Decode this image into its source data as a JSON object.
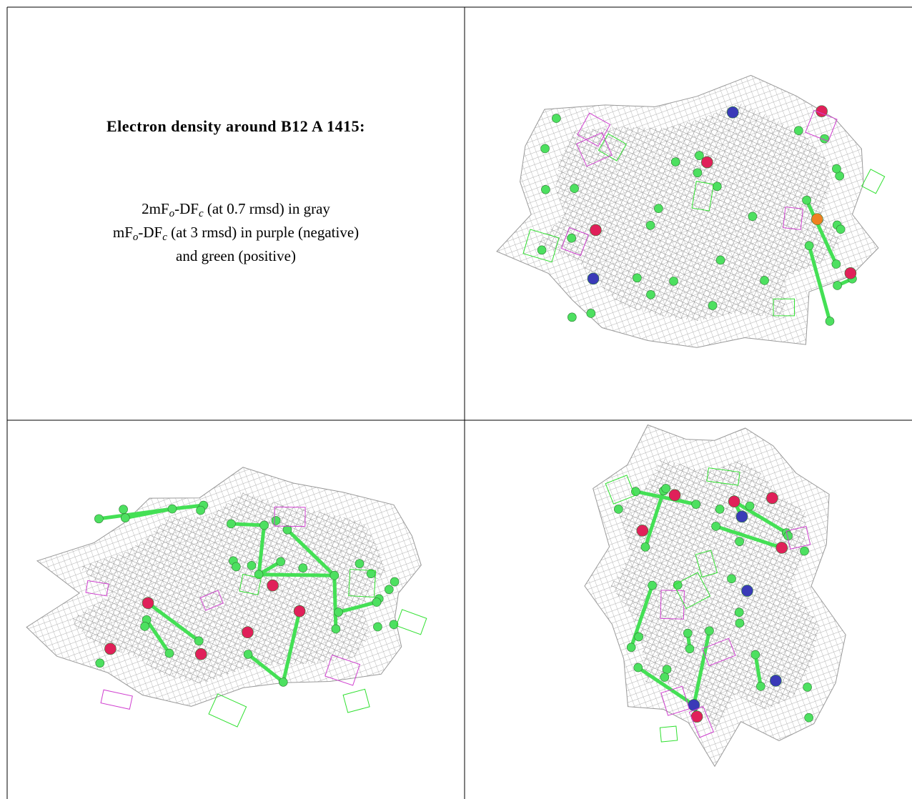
{
  "caption": {
    "title": "Electron density around B12 A 1415:",
    "lines": [
      [
        "2mF",
        "o",
        "-DF",
        "c",
        " (at 0.7 rmsd) in gray"
      ],
      [
        "mF",
        "o",
        "-DF",
        "c",
        " (at 3 rmsd) in purple (negative)"
      ],
      [
        "and green (positive)"
      ]
    ]
  }
}
